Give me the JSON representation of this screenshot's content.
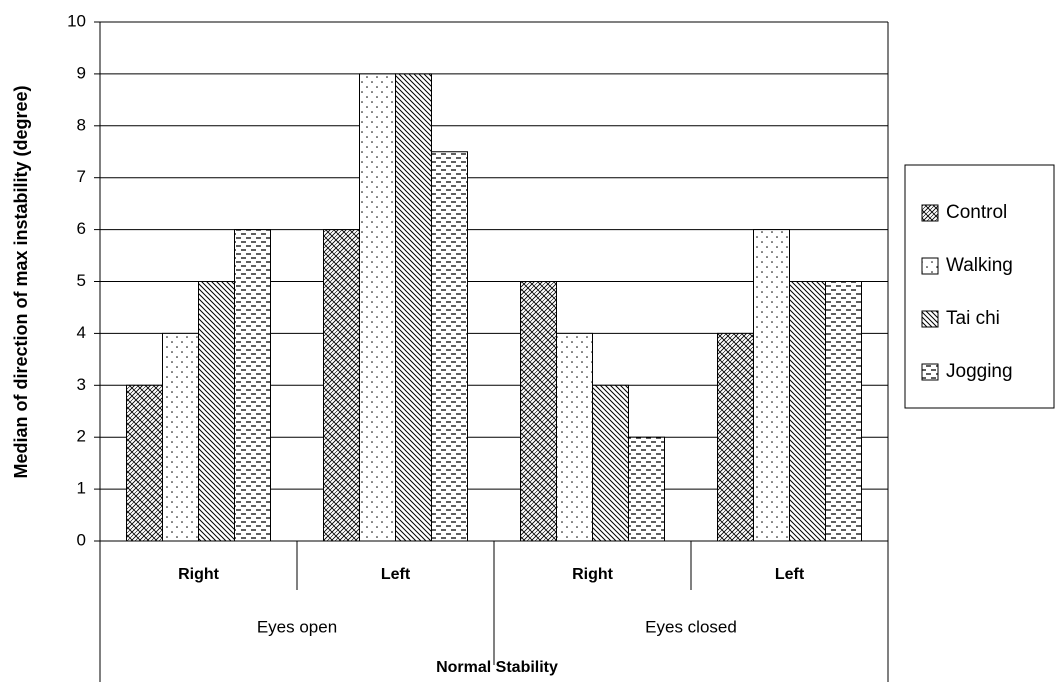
{
  "chart_data": {
    "type": "bar",
    "y_label": "Median of direction of max instability (degree)",
    "x_label": "Normal Stability",
    "categories": [
      "Right",
      "Left",
      "Right",
      "Left"
    ],
    "group_labels": [
      "Eyes open",
      "Eyes closed"
    ],
    "series": [
      {
        "name": "Control",
        "color": "#000000",
        "pattern": "crosshatch",
        "values": [
          3,
          6,
          5,
          4
        ]
      },
      {
        "name": "Walking",
        "color": "#000000",
        "pattern": "dots",
        "values": [
          4,
          9,
          4,
          6
        ]
      },
      {
        "name": "Tai chi",
        "color": "#000000",
        "pattern": "diagonal",
        "values": [
          5,
          9,
          3,
          5
        ]
      },
      {
        "name": "Jogging",
        "color": "#000000",
        "pattern": "dashes",
        "values": [
          6,
          7.5,
          2,
          5
        ]
      }
    ],
    "ylim": [
      0,
      10
    ],
    "yticks": [
      0,
      1,
      2,
      3,
      4,
      5,
      6,
      7,
      8,
      9,
      10
    ],
    "grid": true,
    "legend": "right"
  }
}
